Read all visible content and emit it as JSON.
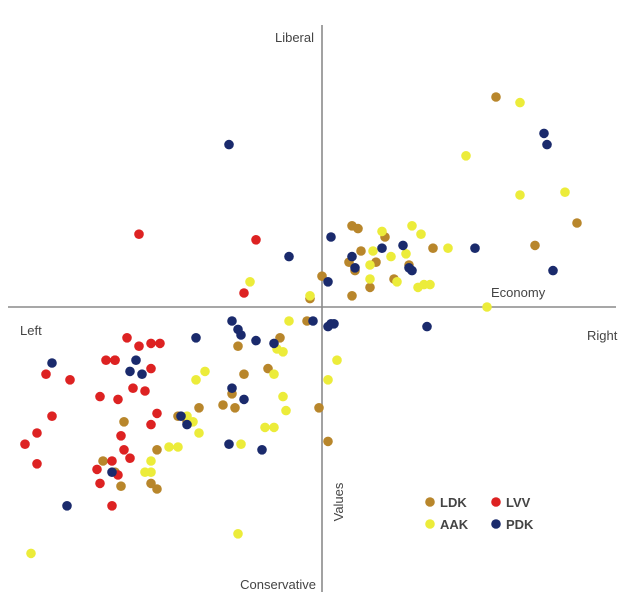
{
  "chart_data": {
    "type": "scatter",
    "title": "",
    "xlabel": "Economy",
    "ylabel": "Values",
    "quadrant_labels": {
      "top": "Liberal",
      "bottom": "Conservative",
      "left": "Left",
      "right": "Right"
    },
    "xlim": [
      -10,
      10
    ],
    "ylim": [
      -10,
      10
    ],
    "grid": false,
    "legend_position": "bottom-right",
    "colors": {
      "LDK": "#b8862b",
      "LVV": "#dd2222",
      "AAK": "#ecec3a",
      "PDK": "#1a2a6c"
    },
    "legend": [
      {
        "name": "LDK",
        "color": "#b8862b"
      },
      {
        "name": "LVV",
        "color": "#dd2222"
      },
      {
        "name": "AAK",
        "color": "#ecec3a"
      },
      {
        "name": "PDK",
        "color": "#1a2a6c"
      }
    ],
    "series": [
      {
        "name": "LDK",
        "color": "#b8862b",
        "points": [
          [
            5.8,
            7.5
          ],
          [
            8.5,
            3.0
          ],
          [
            7.1,
            2.2
          ],
          [
            1.0,
            2.9
          ],
          [
            1.2,
            2.8
          ],
          [
            1.3,
            2.0
          ],
          [
            0.9,
            1.6
          ],
          [
            1.1,
            1.3
          ],
          [
            1.8,
            1.6
          ],
          [
            2.1,
            2.5
          ],
          [
            1.0,
            0.4
          ],
          [
            2.4,
            1.0
          ],
          [
            2.9,
            1.5
          ],
          [
            3.7,
            2.1
          ],
          [
            0.0,
            1.1
          ],
          [
            -0.4,
            0.3
          ],
          [
            -0.5,
            -0.5
          ],
          [
            1.6,
            0.7
          ],
          [
            -1.4,
            -1.1
          ],
          [
            -1.8,
            -2.2
          ],
          [
            -2.6,
            -2.4
          ],
          [
            -3.0,
            -3.1
          ],
          [
            -3.3,
            -3.5
          ],
          [
            -4.1,
            -3.6
          ],
          [
            -4.5,
            -4.1
          ],
          [
            -4.8,
            -3.9
          ],
          [
            -5.5,
            -5.1
          ],
          [
            -6.6,
            -4.1
          ],
          [
            -6.9,
            -5.9
          ],
          [
            -7.3,
            -5.5
          ],
          [
            -6.7,
            -6.4
          ],
          [
            -5.7,
            -6.3
          ],
          [
            -5.5,
            -6.5
          ],
          [
            -0.1,
            -3.6
          ],
          [
            0.2,
            -4.8
          ],
          [
            -2.8,
            -1.4
          ],
          [
            -2.9,
            -3.6
          ]
        ]
      },
      {
        "name": "LVV",
        "color": "#dd2222",
        "points": [
          [
            -6.1,
            2.6
          ],
          [
            -2.2,
            2.4
          ],
          [
            -2.6,
            0.5
          ],
          [
            -6.5,
            -1.1
          ],
          [
            -6.9,
            -1.9
          ],
          [
            -6.9,
            -1.9
          ],
          [
            -7.2,
            -1.9
          ],
          [
            -5.4,
            -1.3
          ],
          [
            -5.7,
            -1.3
          ],
          [
            -6.1,
            -1.4
          ],
          [
            -5.7,
            -2.2
          ],
          [
            -6.3,
            -2.9
          ],
          [
            -5.9,
            -3.0
          ],
          [
            -6.8,
            -3.3
          ],
          [
            -7.4,
            -3.2
          ],
          [
            -8.4,
            -2.6
          ],
          [
            -9.2,
            -2.4
          ],
          [
            -9.0,
            -3.9
          ],
          [
            -9.5,
            -4.5
          ],
          [
            -9.9,
            -4.9
          ],
          [
            -9.5,
            -5.6
          ],
          [
            -6.7,
            -4.6
          ],
          [
            -6.6,
            -5.1
          ],
          [
            -6.4,
            -5.4
          ],
          [
            -7.0,
            -5.5
          ],
          [
            -6.8,
            -6.0
          ],
          [
            -7.5,
            -5.8
          ],
          [
            -7.4,
            -6.3
          ],
          [
            -5.7,
            -4.2
          ],
          [
            -7.0,
            -7.1
          ],
          [
            -5.5,
            -3.8
          ]
        ]
      },
      {
        "name": "AAK",
        "color": "#ecec3a",
        "points": [
          [
            6.6,
            7.3
          ],
          [
            4.8,
            5.4
          ],
          [
            6.6,
            4.0
          ],
          [
            8.1,
            4.1
          ],
          [
            1.7,
            2.0
          ],
          [
            2.3,
            1.8
          ],
          [
            2.0,
            2.7
          ],
          [
            3.0,
            2.9
          ],
          [
            3.3,
            2.6
          ],
          [
            4.2,
            2.1
          ],
          [
            1.6,
            1.5
          ],
          [
            2.8,
            1.9
          ],
          [
            1.6,
            1.0
          ],
          [
            2.5,
            0.9
          ],
          [
            3.2,
            0.7
          ],
          [
            3.4,
            0.8
          ],
          [
            3.6,
            0.8
          ],
          [
            -2.4,
            0.9
          ],
          [
            -0.4,
            0.4
          ],
          [
            5.5,
            0.0
          ],
          [
            -1.1,
            -0.5
          ],
          [
            -1.3,
            -1.6
          ],
          [
            -1.5,
            -1.5
          ],
          [
            0.5,
            -1.9
          ],
          [
            0.2,
            -2.6
          ],
          [
            -3.9,
            -2.3
          ],
          [
            -4.2,
            -2.6
          ],
          [
            -1.6,
            -2.4
          ],
          [
            -1.3,
            -3.2
          ],
          [
            -1.2,
            -3.7
          ],
          [
            -1.6,
            -4.3
          ],
          [
            -1.9,
            -4.3
          ],
          [
            -4.5,
            -3.9
          ],
          [
            -4.3,
            -4.1
          ],
          [
            -4.1,
            -4.5
          ],
          [
            -2.7,
            -4.9
          ],
          [
            -4.8,
            -5.0
          ],
          [
            -5.1,
            -5.0
          ],
          [
            -5.7,
            -5.9
          ],
          [
            -5.7,
            -5.5
          ],
          [
            -5.9,
            -5.9
          ],
          [
            -2.8,
            -8.1
          ],
          [
            -9.7,
            -8.8
          ]
        ]
      },
      {
        "name": "PDK",
        "color": "#1a2a6c",
        "points": [
          [
            -3.1,
            5.8
          ],
          [
            7.4,
            6.2
          ],
          [
            7.5,
            5.8
          ],
          [
            0.3,
            2.5
          ],
          [
            1.0,
            1.8
          ],
          [
            2.0,
            2.1
          ],
          [
            2.7,
            2.2
          ],
          [
            1.1,
            1.4
          ],
          [
            -1.1,
            1.8
          ],
          [
            0.2,
            0.9
          ],
          [
            2.9,
            1.4
          ],
          [
            5.1,
            2.1
          ],
          [
            7.7,
            1.3
          ],
          [
            3.0,
            1.3
          ],
          [
            -3.0,
            -0.5
          ],
          [
            -2.8,
            -0.8
          ],
          [
            -2.7,
            -1.0
          ],
          [
            -2.2,
            -1.2
          ],
          [
            -1.6,
            -1.3
          ],
          [
            -0.3,
            -0.5
          ],
          [
            0.3,
            -0.6
          ],
          [
            0.2,
            -0.7
          ],
          [
            3.5,
            -0.7
          ],
          [
            -4.2,
            -1.1
          ],
          [
            -6.2,
            -1.9
          ],
          [
            -6.4,
            -2.3
          ],
          [
            -9.0,
            -2.0
          ],
          [
            -6.0,
            -2.4
          ],
          [
            -3.0,
            -2.9
          ],
          [
            -2.6,
            -3.3
          ],
          [
            -4.5,
            -4.2
          ],
          [
            -4.7,
            -3.9
          ],
          [
            -3.1,
            -4.9
          ],
          [
            -2.0,
            -5.1
          ],
          [
            -7.0,
            -5.9
          ],
          [
            -8.5,
            -7.1
          ],
          [
            0.4,
            -0.6
          ]
        ]
      }
    ]
  }
}
